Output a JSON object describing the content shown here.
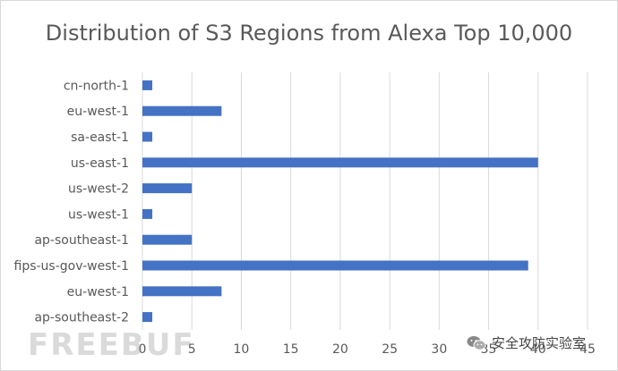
{
  "chart_data": {
    "type": "bar",
    "orientation": "horizontal",
    "title": "Distribution of S3 Regions from Alexa Top 10,000",
    "xlabel": "",
    "ylabel": "",
    "categories": [
      "cn-north-1",
      "eu-west-1",
      "sa-east-1",
      "us-east-1",
      "us-west-2",
      "us-west-1",
      "ap-southeast-1",
      "fips-us-gov-west-1",
      "eu-west-1",
      "ap-southeast-2"
    ],
    "values": [
      1,
      8,
      1,
      40,
      5,
      1,
      5,
      39,
      8,
      1
    ],
    "xlim": [
      0,
      45
    ],
    "xticks": [
      "0",
      "5",
      "10",
      "15",
      "20",
      "25",
      "30",
      "35",
      "40",
      "45"
    ],
    "grid": "vertical",
    "bar_color": "#4472c4",
    "grid_color": "#d9d9d9"
  },
  "watermark": {
    "text": "FREEBUF",
    "account": "安全攻防实验室"
  }
}
